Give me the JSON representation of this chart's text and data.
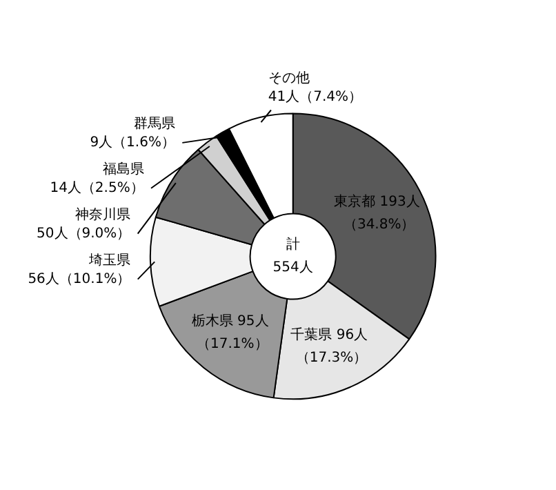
{
  "chart_data": {
    "type": "donut",
    "categories": [
      "東京都",
      "千葉県",
      "栃木県",
      "埼玉県",
      "神奈川県",
      "福島県",
      "群馬県",
      "その他"
    ],
    "values": [
      193,
      96,
      95,
      56,
      50,
      14,
      9,
      41
    ],
    "value_labels": [
      "193人（34.8%）",
      "96人（17.3%）",
      "95人（17.1%）",
      "56人（10.1%）",
      "50人（9.0%）",
      "14人（2.5%）",
      "9人（1.6%）",
      "41人（7.4%）"
    ],
    "colors": [
      "#595959",
      "#e6e6e6",
      "#999999",
      "#f2f2f2",
      "#6e6e6e",
      "#d0d0d0",
      "#000000",
      "#ffffff"
    ],
    "annotations": [
      "計",
      "554人"
    ]
  }
}
